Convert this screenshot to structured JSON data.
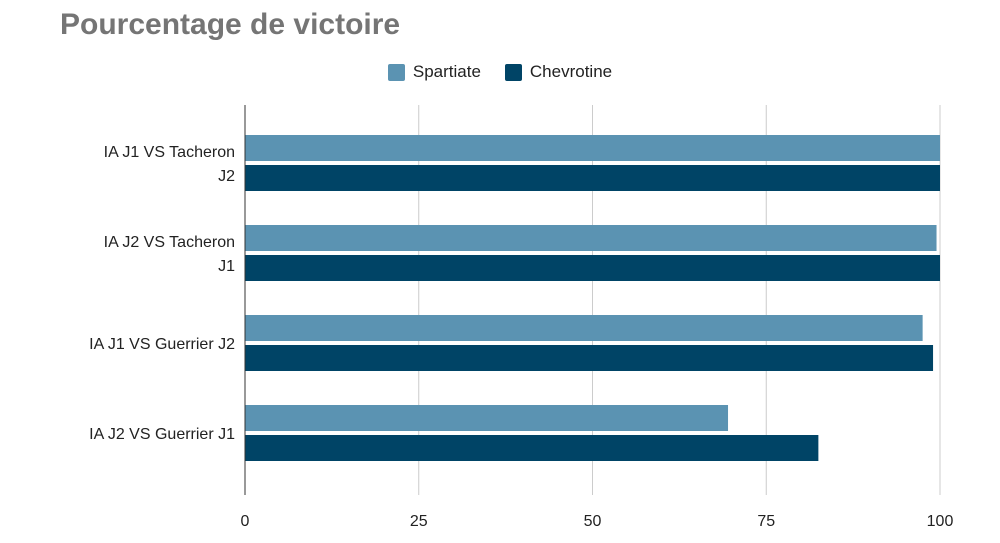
{
  "chart_data": {
    "type": "bar",
    "orientation": "horizontal",
    "title": "Pourcentage de victoire",
    "xlabel": "",
    "ylabel": "",
    "categories": [
      [
        "IA J1 VS Tacheron",
        "J2"
      ],
      [
        "IA J2 VS Tacheron",
        "J1"
      ],
      [
        "IA J1 VS Guerrier J2"
      ],
      [
        "IA J2 VS Guerrier J1"
      ]
    ],
    "series": [
      {
        "name": "Spartiate",
        "color": "#5b93b2",
        "values": [
          100,
          99.5,
          97.5,
          69.5
        ]
      },
      {
        "name": "Chevrotine",
        "color": "#004466",
        "values": [
          100,
          100,
          99,
          82.5
        ]
      }
    ],
    "xlim": [
      0,
      100
    ],
    "xticks": [
      0,
      25,
      50,
      75,
      100
    ],
    "grid": true,
    "legend_position": "top-center"
  }
}
